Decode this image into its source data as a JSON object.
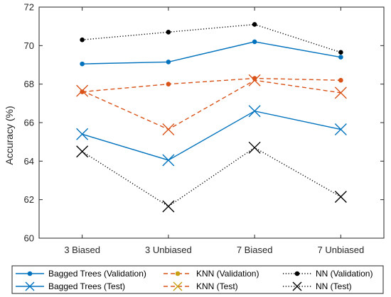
{
  "chart_data": {
    "type": "line",
    "categories": [
      "3 Biased",
      "3 Unbiased",
      "7 Biased",
      "7 Unbiased"
    ],
    "ylabel": "Accuracy (%)",
    "ylim": [
      60,
      72
    ],
    "yticks": [
      60,
      62,
      64,
      66,
      68,
      70,
      72
    ],
    "grid": false,
    "legend_placement": "bottom",
    "series": [
      {
        "name": "Bagged Trees (Validation)",
        "values": [
          69.05,
          69.15,
          70.2,
          69.4
        ],
        "color": "#0072BD",
        "line": "solid",
        "marker": "dot"
      },
      {
        "name": "Bagged Trees (Test)",
        "values": [
          65.4,
          64.05,
          66.6,
          65.65
        ],
        "color": "#0072BD",
        "line": "solid",
        "marker": "x"
      },
      {
        "name": "KNN (Validation)",
        "values": [
          67.6,
          68.0,
          68.3,
          68.2
        ],
        "color": "#D95319",
        "line": "dashed",
        "marker": "dot"
      },
      {
        "name": "KNN (Test)",
        "values": [
          67.65,
          65.65,
          68.2,
          67.55
        ],
        "color": "#D95319",
        "line": "dashed",
        "marker": "x"
      },
      {
        "name": "NN (Validation)",
        "values": [
          70.3,
          70.7,
          71.1,
          69.65
        ],
        "color": "#000000",
        "line": "dotted",
        "marker": "dot"
      },
      {
        "name": "NN (Test)",
        "values": [
          64.5,
          61.65,
          64.7,
          62.15
        ],
        "color": "#000000",
        "line": "dotted",
        "marker": "x"
      }
    ],
    "legend": {
      "items": [
        {
          "label": "Bagged Trees (Validation)",
          "series": 0
        },
        {
          "label": "KNN (Validation)",
          "series": 2,
          "marker_color": "#C8A012"
        },
        {
          "label": "NN (Validation)",
          "series": 4
        },
        {
          "label": "Bagged Trees (Test)",
          "series": 1
        },
        {
          "label": "KNN (Test)",
          "series": 3,
          "marker_color": "#C8A012"
        },
        {
          "label": "NN (Test)",
          "series": 5
        }
      ]
    }
  }
}
